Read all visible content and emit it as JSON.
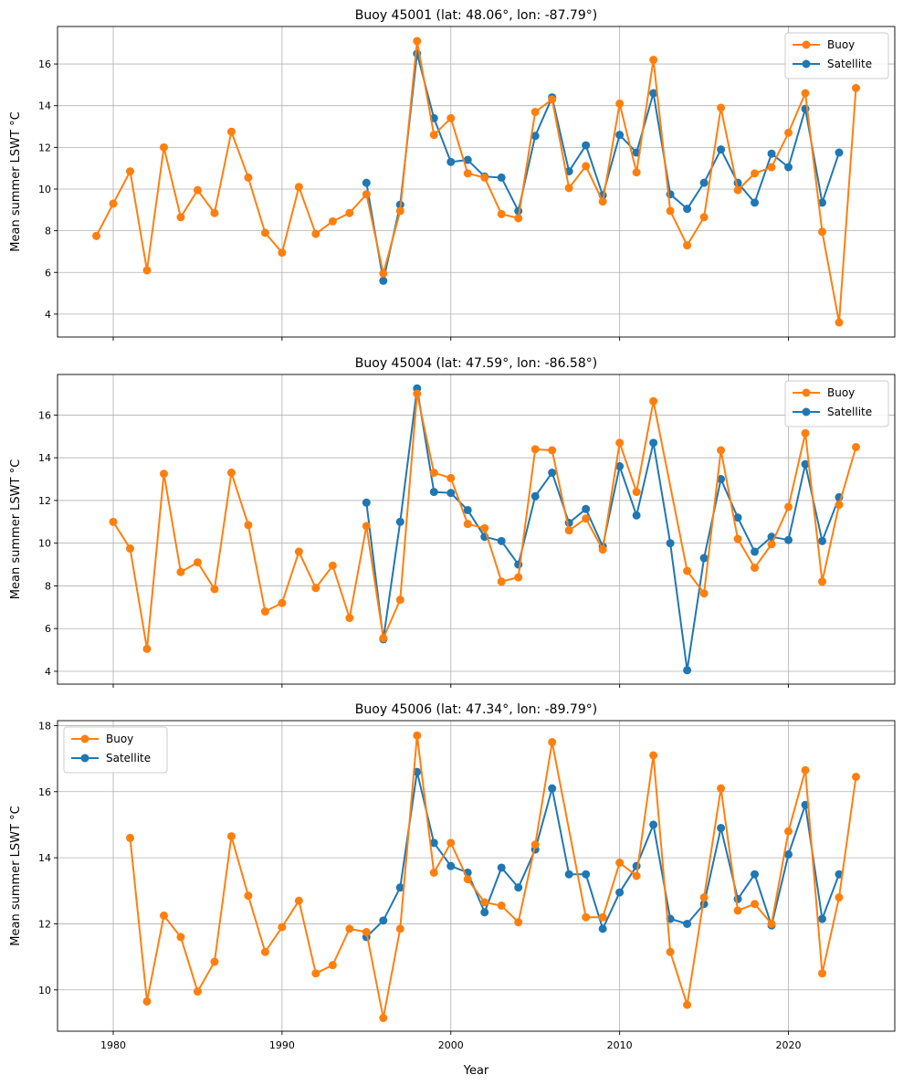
{
  "chart_data": [
    {
      "type": "line",
      "title": "Buoy 45001 (lat: 48.06°, lon: -87.79°)",
      "xlabel": "",
      "ylabel": "Mean summer LSWT °C",
      "xlim": [
        1976.7,
        2026.3
      ],
      "ylim": [
        2.9,
        17.8
      ],
      "xticks": [
        1980,
        1990,
        2000,
        2010,
        2020
      ],
      "yticks": [
        4,
        6,
        8,
        10,
        12,
        14,
        16
      ],
      "show_xtick_labels": false,
      "grid": true,
      "legend_position": "top-right",
      "series": [
        {
          "name": "Buoy",
          "color": "#ff7f0e",
          "x": [
            1979,
            1980,
            1981,
            1982,
            1983,
            1984,
            1985,
            1986,
            1987,
            1988,
            1989,
            1990,
            1991,
            1992,
            1993,
            1994,
            1995,
            1996,
            1997,
            1998,
            1999,
            2000,
            2001,
            2002,
            2003,
            2004,
            2005,
            2006,
            2007,
            2008,
            2009,
            2010,
            2011,
            2012,
            2013,
            2014,
            2015,
            2016,
            2017,
            2018,
            2019,
            2020,
            2021,
            2022,
            2023,
            2024
          ],
          "y": [
            7.75,
            9.3,
            10.85,
            6.1,
            12.0,
            8.65,
            9.95,
            8.85,
            12.75,
            10.55,
            7.9,
            6.95,
            10.1,
            7.85,
            8.45,
            8.85,
            9.75,
            5.95,
            8.95,
            17.1,
            12.6,
            13.4,
            10.75,
            10.55,
            8.8,
            8.6,
            13.7,
            14.3,
            10.05,
            11.1,
            9.4,
            14.1,
            10.8,
            16.2,
            8.95,
            7.3,
            8.65,
            13.9,
            9.95,
            10.75,
            11.05,
            12.7,
            14.6,
            7.95,
            3.6,
            14.85
          ]
        },
        {
          "name": "Satellite",
          "color": "#1f77b4",
          "x": [
            1995,
            1996,
            1997,
            1998,
            1999,
            2000,
            2001,
            2002,
            2003,
            2004,
            2005,
            2006,
            2007,
            2008,
            2009,
            2010,
            2011,
            2012,
            2013,
            2014,
            2015,
            2016,
            2017,
            2018,
            2019,
            2020,
            2021,
            2022,
            2023
          ],
          "y": [
            10.3,
            5.6,
            9.25,
            16.5,
            13.4,
            11.3,
            11.4,
            10.6,
            10.55,
            8.95,
            12.55,
            14.4,
            10.85,
            12.1,
            9.7,
            12.6,
            11.75,
            14.6,
            9.75,
            9.05,
            10.3,
            11.9,
            10.3,
            9.35,
            11.7,
            11.05,
            13.85,
            9.35,
            11.75
          ]
        }
      ]
    },
    {
      "type": "line",
      "title": "Buoy 45004 (lat: 47.59°, lon: -86.58°)",
      "xlabel": "",
      "ylabel": "Mean summer LSWT °C",
      "xlim": [
        1976.7,
        2026.3
      ],
      "ylim": [
        3.4,
        17.9
      ],
      "xticks": [
        1980,
        1990,
        2000,
        2010,
        2020
      ],
      "yticks": [
        4,
        6,
        8,
        10,
        12,
        14,
        16
      ],
      "show_xtick_labels": false,
      "grid": true,
      "legend_position": "top-right",
      "series": [
        {
          "name": "Buoy",
          "color": "#ff7f0e",
          "x": [
            1980,
            1981,
            1982,
            1983,
            1984,
            1985,
            1986,
            1987,
            1988,
            1989,
            1990,
            1991,
            1992,
            1993,
            1994,
            1995,
            1996,
            1997,
            1998,
            1999,
            2000,
            2001,
            2002,
            2003,
            2004,
            2005,
            2006,
            2007,
            2008,
            2009,
            2010,
            2011,
            2012,
            2014,
            2015,
            2016,
            2017,
            2018,
            2019,
            2020,
            2021,
            2022,
            2023,
            2024
          ],
          "y": [
            11.0,
            9.75,
            5.05,
            13.25,
            8.65,
            9.1,
            7.85,
            13.3,
            10.85,
            6.8,
            7.2,
            9.6,
            7.9,
            8.95,
            6.5,
            10.8,
            5.55,
            7.35,
            17.0,
            13.3,
            13.05,
            10.9,
            10.7,
            8.2,
            8.4,
            14.4,
            14.35,
            10.6,
            11.15,
            9.7,
            14.7,
            12.4,
            16.65,
            8.7,
            7.65,
            14.35,
            10.2,
            8.85,
            9.95,
            11.7,
            15.15,
            8.2,
            11.8,
            14.5
          ]
        },
        {
          "name": "Satellite",
          "color": "#1f77b4",
          "x": [
            1995,
            1996,
            1997,
            1998,
            1999,
            2000,
            2001,
            2002,
            2003,
            2004,
            2005,
            2006,
            2007,
            2008,
            2009,
            2010,
            2011,
            2012,
            2013,
            2014,
            2015,
            2016,
            2017,
            2018,
            2019,
            2020,
            2021,
            2022,
            2023
          ],
          "y": [
            11.9,
            5.5,
            11.0,
            17.25,
            12.4,
            12.35,
            11.55,
            10.3,
            10.1,
            9.0,
            12.2,
            13.3,
            10.95,
            11.6,
            9.85,
            13.6,
            11.3,
            14.7,
            10.0,
            4.05,
            9.3,
            13.0,
            11.2,
            9.6,
            10.3,
            10.15,
            13.7,
            10.1,
            12.15
          ]
        }
      ]
    },
    {
      "type": "line",
      "title": "Buoy 45006 (lat: 47.34°, lon: -89.79°)",
      "xlabel": "Year",
      "ylabel": "Mean summer LSWT °C",
      "xlim": [
        1976.7,
        2026.3
      ],
      "ylim": [
        8.75,
        18.15
      ],
      "xticks": [
        1980,
        1990,
        2000,
        2010,
        2020
      ],
      "yticks": [
        10,
        12,
        14,
        16,
        18
      ],
      "show_xtick_labels": true,
      "grid": true,
      "legend_position": "top-left",
      "series": [
        {
          "name": "Buoy",
          "color": "#ff7f0e",
          "x": [
            1981,
            1982,
            1983,
            1984,
            1985,
            1986,
            1987,
            1988,
            1989,
            1990,
            1991,
            1992,
            1993,
            1994,
            1995,
            1996,
            1997,
            1998,
            1999,
            2000,
            2001,
            2002,
            2003,
            2004,
            2005,
            2006,
            2008,
            2009,
            2010,
            2011,
            2012,
            2013,
            2014,
            2015,
            2016,
            2017,
            2018,
            2019,
            2020,
            2021,
            2022,
            2023,
            2024
          ],
          "y": [
            14.6,
            9.65,
            12.25,
            11.6,
            9.95,
            10.85,
            14.65,
            12.85,
            11.15,
            11.9,
            12.7,
            10.5,
            10.75,
            11.85,
            11.75,
            9.15,
            11.85,
            17.7,
            13.55,
            14.45,
            13.35,
            12.65,
            12.55,
            12.05,
            14.4,
            17.5,
            12.2,
            12.2,
            13.85,
            13.45,
            17.1,
            11.15,
            9.55,
            12.8,
            16.1,
            12.4,
            12.6,
            12.0,
            14.8,
            16.65,
            10.5,
            12.8,
            16.45
          ]
        },
        {
          "name": "Satellite",
          "color": "#1f77b4",
          "x": [
            1995,
            1996,
            1997,
            1998,
            1999,
            2000,
            2001,
            2002,
            2003,
            2004,
            2005,
            2006,
            2007,
            2008,
            2009,
            2010,
            2011,
            2012,
            2013,
            2014,
            2015,
            2016,
            2017,
            2018,
            2019,
            2020,
            2021,
            2022,
            2023
          ],
          "y": [
            11.6,
            12.1,
            13.1,
            16.6,
            14.45,
            13.75,
            13.55,
            12.35,
            13.7,
            13.1,
            14.25,
            16.1,
            13.5,
            13.5,
            11.85,
            12.95,
            13.75,
            15.0,
            12.15,
            12.0,
            12.6,
            14.9,
            12.75,
            13.5,
            11.95,
            14.1,
            15.6,
            12.15,
            13.5
          ]
        }
      ]
    }
  ]
}
